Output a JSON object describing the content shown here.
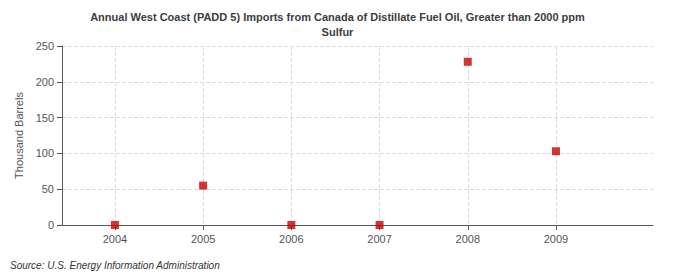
{
  "chart_data": {
    "type": "scatter",
    "title": "Annual West Coast (PADD 5) Imports from Canada of Distillate Fuel Oil, Greater than 2000 ppm\nSulfur",
    "ylabel": "Thousand Barrels",
    "annotation": "Source: U.S. Energy Information Administration",
    "x": [
      2004,
      2005,
      2006,
      2007,
      2008,
      2009
    ],
    "values": [
      0,
      55,
      0,
      0,
      228,
      103
    ],
    "color": "#cc0000",
    "marker": "square",
    "xlim": [
      2003.4,
      2010.1
    ],
    "xticks": [
      2004,
      2005,
      2006,
      2007,
      2008,
      2009
    ],
    "ylim": [
      0,
      250
    ],
    "yticks": [
      0,
      50,
      100,
      150,
      200,
      250
    ],
    "grid": true
  }
}
